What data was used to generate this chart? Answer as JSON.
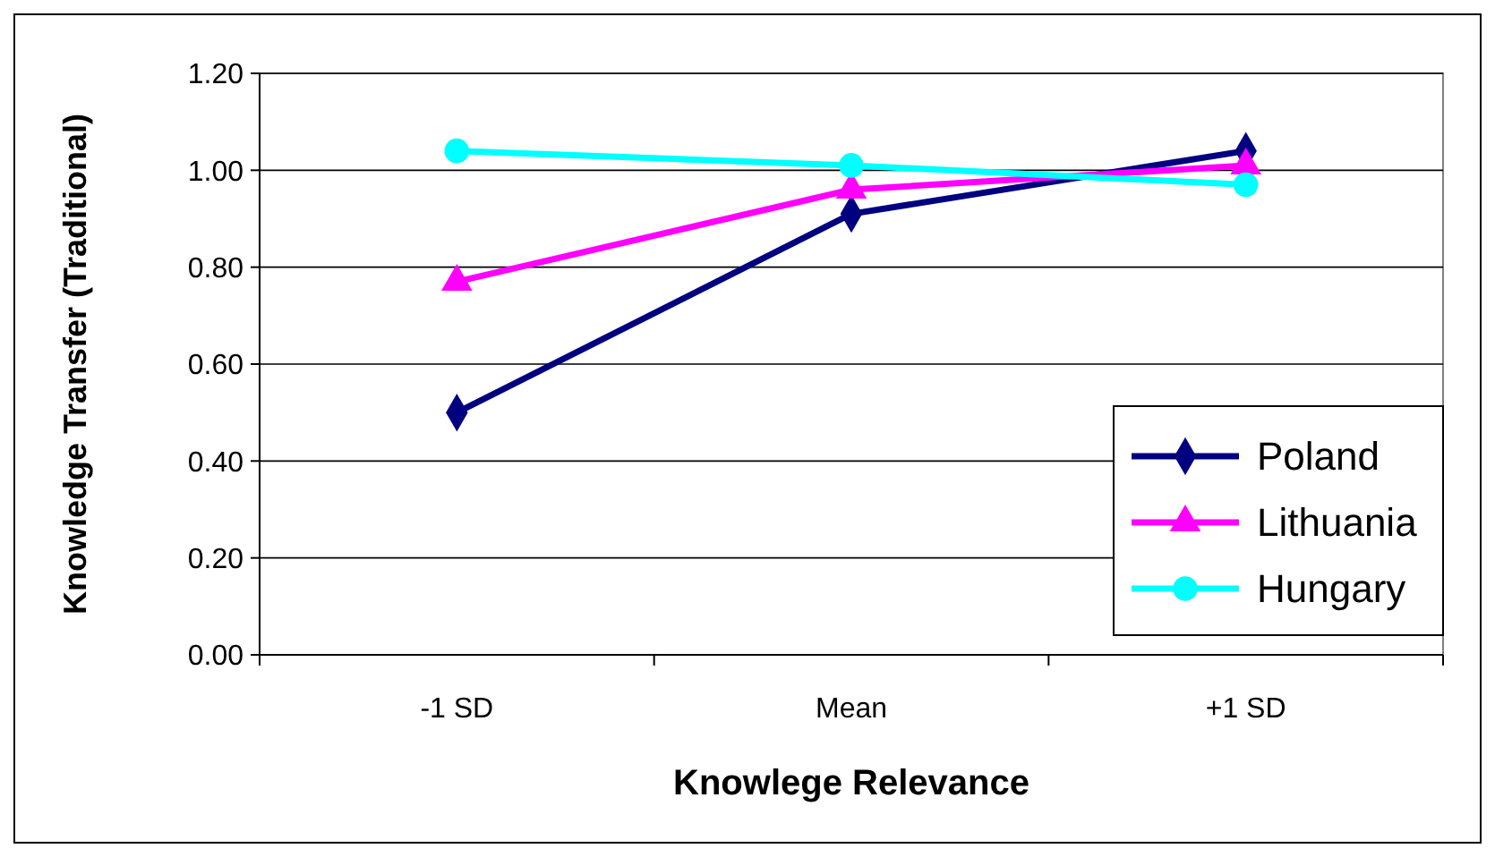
{
  "chart_data": {
    "type": "line",
    "xlabel": "Knowlege Relevance",
    "ylabel": "Knowledge Transfer (Traditional)",
    "categories": [
      "-1 SD",
      "Mean",
      "+1 SD"
    ],
    "ylim": [
      0,
      1.2
    ],
    "yticks": [
      {
        "value": 0,
        "label": "0.00"
      },
      {
        "value": 0.2,
        "label": "0.20"
      },
      {
        "value": 0.4,
        "label": "0.40"
      },
      {
        "value": 0.6,
        "label": "0.60"
      },
      {
        "value": 0.8,
        "label": "0.80"
      },
      {
        "value": 1,
        "label": "1.00"
      },
      {
        "value": 1.2,
        "label": "1.20"
      }
    ],
    "grid": "y",
    "legend": "bottom right",
    "line_style": "solid",
    "series": [
      {
        "name": "Poland",
        "color": "#000080",
        "marker": "diamond",
        "values": [
          0.5,
          0.91,
          1.04
        ]
      },
      {
        "name": "Lithuania",
        "color": "#ff00ff",
        "marker": "triangle",
        "values": [
          0.77,
          0.96,
          1.01
        ]
      },
      {
        "name": "Hungary",
        "color": "#00ffff",
        "marker": "circle",
        "values": [
          1.04,
          1.01,
          0.97
        ]
      }
    ]
  }
}
